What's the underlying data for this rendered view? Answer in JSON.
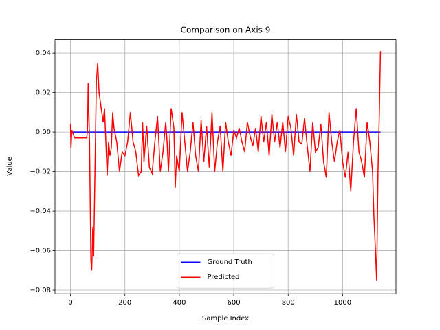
{
  "chart_data": {
    "type": "line",
    "title": "Comparison on Axis 9",
    "xlabel": "Sample Index",
    "ylabel": "Value",
    "xlim": [
      -57,
      1196
    ],
    "ylim": [
      -0.0818,
      0.0468
    ],
    "xticks": [
      0,
      200,
      400,
      600,
      800,
      1000
    ],
    "yticks": [
      {
        "value": -0.08,
        "label": "−0.08"
      },
      {
        "value": -0.06,
        "label": "−0.06"
      },
      {
        "value": -0.04,
        "label": "−0.04"
      },
      {
        "value": -0.02,
        "label": "−0.02"
      },
      {
        "value": 0,
        "label": "0.00"
      },
      0.02,
      0.04
    ],
    "grid": true,
    "legend": "lower center",
    "series": [
      {
        "name": "Ground Truth",
        "color": "#0000ff",
        "x": [
          0,
          1139
        ],
        "values": [
          0,
          0
        ]
      },
      {
        "name": "Predicted",
        "color": "#ff0000",
        "x": [
          0,
          2,
          5,
          15,
          30,
          50,
          60,
          63,
          65,
          70,
          75,
          78,
          82,
          85,
          90,
          95,
          100,
          105,
          110,
          115,
          120,
          125,
          130,
          135,
          140,
          145,
          150,
          155,
          160,
          170,
          180,
          190,
          200,
          210,
          220,
          230,
          240,
          250,
          260,
          265,
          270,
          280,
          290,
          300,
          310,
          320,
          330,
          340,
          350,
          355,
          360,
          370,
          380,
          385,
          390,
          400,
          410,
          420,
          430,
          440,
          450,
          460,
          470,
          480,
          490,
          500,
          510,
          520,
          530,
          540,
          550,
          560,
          570,
          580,
          590,
          600,
          610,
          620,
          630,
          640,
          650,
          660,
          670,
          680,
          690,
          700,
          710,
          720,
          730,
          740,
          750,
          760,
          770,
          780,
          790,
          800,
          810,
          820,
          830,
          840,
          850,
          860,
          870,
          880,
          890,
          900,
          910,
          920,
          930,
          940,
          950,
          960,
          970,
          980,
          990,
          1000,
          1010,
          1020,
          1030,
          1040,
          1050,
          1060,
          1070,
          1080,
          1090,
          1100,
          1110,
          1115,
          1120,
          1125,
          1130,
          1135,
          1139
        ],
        "values": [
          0.004,
          -0.008,
          0.001,
          -0.003,
          -0.003,
          -0.003,
          -0.003,
          0.003,
          0.025,
          -0.005,
          -0.065,
          -0.07,
          -0.048,
          -0.063,
          -0.02,
          0.025,
          0.035,
          0.02,
          0.015,
          0.01,
          0.005,
          0.012,
          -0.005,
          -0.022,
          -0.005,
          -0.012,
          -0.008,
          0.01,
          0.002,
          -0.005,
          -0.02,
          -0.01,
          -0.012,
          -0.005,
          0.01,
          -0.005,
          -0.01,
          -0.022,
          -0.02,
          0.005,
          -0.015,
          0.003,
          -0.018,
          -0.021,
          -0.005,
          0.008,
          -0.02,
          -0.01,
          0.005,
          -0.005,
          -0.02,
          0.012,
          0.002,
          -0.028,
          -0.012,
          -0.02,
          0.01,
          -0.005,
          -0.02,
          -0.01,
          0.005,
          -0.012,
          -0.02,
          0.006,
          -0.015,
          0.003,
          -0.018,
          0.01,
          -0.02,
          -0.005,
          0.003,
          -0.02,
          0.005,
          -0.005,
          -0.012,
          0.001,
          -0.003,
          0.002,
          -0.005,
          -0.01,
          0.005,
          -0.002,
          -0.007,
          0.002,
          -0.01,
          0.008,
          -0.005,
          0.005,
          -0.012,
          0.009,
          -0.005,
          0.005,
          -0.008,
          0.005,
          -0.01,
          0.008,
          0.002,
          -0.012,
          0.009,
          -0.005,
          -0.006,
          0.007,
          -0.007,
          -0.02,
          0.005,
          -0.01,
          -0.008,
          0.004,
          -0.015,
          -0.023,
          0.01,
          -0.005,
          -0.015,
          -0.005,
          0.001,
          -0.015,
          -0.023,
          -0.01,
          -0.03,
          -0.005,
          0.012,
          -0.01,
          -0.015,
          -0.023,
          0.005,
          -0.005,
          -0.02,
          -0.043,
          -0.058,
          -0.075,
          -0.02,
          0.01,
          0.041
        ]
      }
    ]
  }
}
